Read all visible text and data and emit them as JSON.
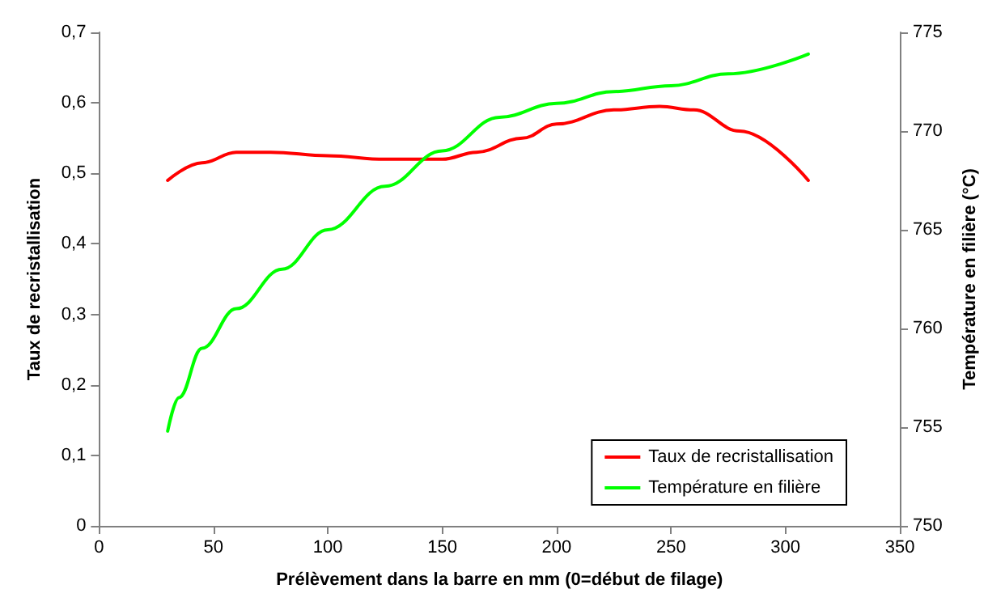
{
  "chart_data": {
    "type": "line",
    "xlabel": "Prélèvement dans la barre en mm (0=début de filage)",
    "ylabel": "Taux de recristallisation",
    "y2label": "Température en filière (°C)",
    "xlim": [
      0,
      350
    ],
    "xticks": [
      0,
      50,
      100,
      150,
      200,
      250,
      300,
      350
    ],
    "ylim": [
      0,
      0.7
    ],
    "yticks": [
      {
        "value": 0,
        "label": "0"
      },
      {
        "value": 0.1,
        "label": "0,1"
      },
      {
        "value": 0.2,
        "label": "0,2"
      },
      {
        "value": 0.3,
        "label": "0,3"
      },
      {
        "value": 0.4,
        "label": "0,4"
      },
      {
        "value": 0.5,
        "label": "0,5"
      },
      {
        "value": 0.6,
        "label": "0,6"
      },
      {
        "value": 0.7,
        "label": "0,7"
      }
    ],
    "y2lim": [
      750,
      775
    ],
    "y2ticks": [
      750,
      755,
      760,
      765,
      770,
      775
    ],
    "grid": false,
    "legend": "bottom right",
    "marker": "none",
    "line_style": "solid",
    "series": [
      {
        "name": "Taux de recristallisation",
        "color": "#ff0000",
        "x": [
          30,
          45,
          60,
          75,
          100,
          125,
          150,
          165,
          185,
          200,
          225,
          245,
          260,
          280,
          310
        ],
        "values": [
          0.49,
          0.515,
          0.53,
          0.53,
          0.525,
          0.52,
          0.52,
          0.53,
          0.55,
          0.57,
          0.59,
          0.595,
          0.59,
          0.56,
          0.49
        ]
      },
      {
        "name": "Température en filière",
        "color": "#00ff00",
        "axis": "y2",
        "x": [
          30,
          35,
          45,
          60,
          80,
          100,
          125,
          150,
          175,
          200,
          225,
          250,
          275,
          310
        ],
        "values": [
          754.8,
          756.5,
          759,
          761,
          763,
          765,
          767.2,
          769,
          770.7,
          771.4,
          772,
          772.3,
          772.9,
          773.9
        ]
      }
    ]
  }
}
